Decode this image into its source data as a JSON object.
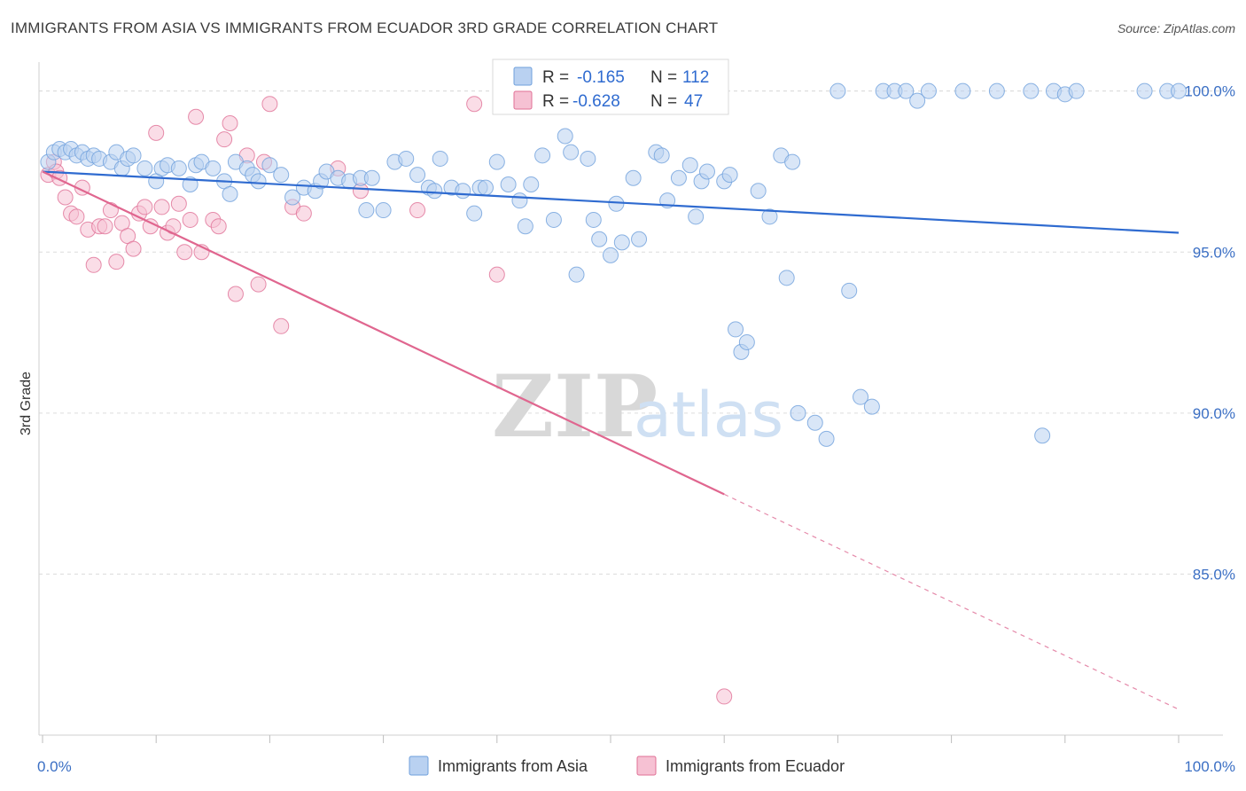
{
  "title": "IMMIGRANTS FROM ASIA VS IMMIGRANTS FROM ECUADOR 3RD GRADE CORRELATION CHART",
  "source": "Source: ZipAtlas.com",
  "watermark": {
    "zip": "ZIP",
    "atlas": "atlas"
  },
  "colors": {
    "asia": "#6fa0dc",
    "asia_fill": "#b9d1f1",
    "ecuador": "#e07096",
    "ecuador_fill": "#f6c1d3",
    "grid": "#dcdcdc"
  },
  "legend": {
    "r_label": "R =",
    "n_label": "N =",
    "asia": {
      "r": "-0.165",
      "n": "112"
    },
    "ecuador": {
      "r": "-0.628",
      "n": "47"
    }
  },
  "chart_data": {
    "type": "scatter",
    "title": "IMMIGRANTS FROM ASIA VS IMMIGRANTS FROM ECUADOR 3RD GRADE CORRELATION CHART",
    "xlabel": "",
    "ylabel": "3rd Grade",
    "xlim": [
      0,
      100
    ],
    "ylim": [
      80.0,
      100.9
    ],
    "x_tick_labels": [
      "0.0%",
      "100.0%"
    ],
    "y_ticks": [
      100.0,
      95.0,
      90.0,
      85.0
    ],
    "y_tick_labels": [
      "100.0%",
      "95.0%",
      "90.0%",
      "85.0%"
    ],
    "series": [
      {
        "name": "Immigrants from Asia",
        "trend": {
          "x0": 0,
          "y0": 97.5,
          "x1": 100,
          "y1": 95.6,
          "dashed_from": null
        },
        "points": [
          [
            0.5,
            97.8
          ],
          [
            1,
            98.1
          ],
          [
            1.5,
            98.2
          ],
          [
            2,
            98.1
          ],
          [
            2.5,
            98.2
          ],
          [
            3,
            98.0
          ],
          [
            3.5,
            98.1
          ],
          [
            4,
            97.9
          ],
          [
            4.5,
            98.0
          ],
          [
            5,
            97.9
          ],
          [
            6,
            97.8
          ],
          [
            6.5,
            98.1
          ],
          [
            7,
            97.6
          ],
          [
            7.5,
            97.9
          ],
          [
            8,
            98.0
          ],
          [
            9,
            97.6
          ],
          [
            10,
            97.2
          ],
          [
            10.5,
            97.6
          ],
          [
            11,
            97.7
          ],
          [
            12,
            97.6
          ],
          [
            13,
            97.1
          ],
          [
            13.5,
            97.7
          ],
          [
            14,
            97.8
          ],
          [
            15,
            97.6
          ],
          [
            16,
            97.2
          ],
          [
            16.5,
            96.8
          ],
          [
            17,
            97.8
          ],
          [
            18,
            97.6
          ],
          [
            18.5,
            97.4
          ],
          [
            19,
            97.2
          ],
          [
            20,
            97.7
          ],
          [
            21,
            97.4
          ],
          [
            22,
            96.7
          ],
          [
            23,
            97.0
          ],
          [
            24,
            96.9
          ],
          [
            24.5,
            97.2
          ],
          [
            25,
            97.5
          ],
          [
            26,
            97.3
          ],
          [
            27,
            97.2
          ],
          [
            28,
            97.3
          ],
          [
            28.5,
            96.3
          ],
          [
            29,
            97.3
          ],
          [
            30,
            96.3
          ],
          [
            31,
            97.8
          ],
          [
            32,
            97.9
          ],
          [
            33,
            97.4
          ],
          [
            34,
            97.0
          ],
          [
            34.5,
            96.9
          ],
          [
            35,
            97.9
          ],
          [
            36,
            97.0
          ],
          [
            37,
            96.9
          ],
          [
            38,
            96.2
          ],
          [
            38.5,
            97.0
          ],
          [
            39,
            97.0
          ],
          [
            40,
            97.8
          ],
          [
            41,
            97.1
          ],
          [
            42,
            96.6
          ],
          [
            42.5,
            95.8
          ],
          [
            43,
            97.1
          ],
          [
            44,
            98.0
          ],
          [
            45,
            96.0
          ],
          [
            46,
            98.6
          ],
          [
            46.5,
            98.1
          ],
          [
            47,
            94.3
          ],
          [
            48,
            97.9
          ],
          [
            48.5,
            96.0
          ],
          [
            49,
            95.4
          ],
          [
            50,
            94.9
          ],
          [
            50.5,
            96.5
          ],
          [
            51,
            95.3
          ],
          [
            52,
            97.3
          ],
          [
            52.5,
            95.4
          ],
          [
            54,
            98.1
          ],
          [
            54.5,
            98.0
          ],
          [
            55,
            96.6
          ],
          [
            56,
            97.3
          ],
          [
            57,
            97.7
          ],
          [
            57.5,
            96.1
          ],
          [
            58,
            97.2
          ],
          [
            58.5,
            97.5
          ],
          [
            60,
            97.2
          ],
          [
            60.5,
            97.4
          ],
          [
            61,
            92.6
          ],
          [
            61.5,
            91.9
          ],
          [
            62,
            92.2
          ],
          [
            63,
            96.9
          ],
          [
            64,
            96.1
          ],
          [
            65,
            98.0
          ],
          [
            65.5,
            94.2
          ],
          [
            66,
            97.8
          ],
          [
            66.5,
            90.0
          ],
          [
            68,
            89.7
          ],
          [
            69,
            89.2
          ],
          [
            70,
            100.0
          ],
          [
            71,
            93.8
          ],
          [
            72,
            90.5
          ],
          [
            73,
            90.2
          ],
          [
            74,
            100.0
          ],
          [
            75,
            100.0
          ],
          [
            76,
            100.0
          ],
          [
            77,
            99.7
          ],
          [
            78,
            100.0
          ],
          [
            81,
            100.0
          ],
          [
            84,
            100.0
          ],
          [
            87,
            100.0
          ],
          [
            88,
            89.3
          ],
          [
            89,
            100.0
          ],
          [
            90,
            99.9
          ],
          [
            91,
            100.0
          ],
          [
            97,
            100.0
          ],
          [
            99,
            100.0
          ],
          [
            100,
            100.0
          ]
        ]
      },
      {
        "name": "Immigrants from Ecuador",
        "trend": {
          "x0": 0,
          "y0": 97.5,
          "x1": 100,
          "y1": 80.8,
          "dashed_from": 60
        },
        "points": [
          [
            0.5,
            97.4
          ],
          [
            1,
            97.8
          ],
          [
            1.2,
            97.5
          ],
          [
            1.5,
            97.3
          ],
          [
            2,
            96.7
          ],
          [
            2.5,
            96.2
          ],
          [
            3,
            96.1
          ],
          [
            3.5,
            97.0
          ],
          [
            4,
            95.7
          ],
          [
            4.5,
            94.6
          ],
          [
            5,
            95.8
          ],
          [
            5.5,
            95.8
          ],
          [
            6,
            96.3
          ],
          [
            6.5,
            94.7
          ],
          [
            7,
            95.9
          ],
          [
            7.5,
            95.5
          ],
          [
            8,
            95.1
          ],
          [
            8.5,
            96.2
          ],
          [
            9,
            96.4
          ],
          [
            9.5,
            95.8
          ],
          [
            10,
            98.7
          ],
          [
            10.5,
            96.4
          ],
          [
            11,
            95.6
          ],
          [
            11.5,
            95.8
          ],
          [
            12,
            96.5
          ],
          [
            12.5,
            95.0
          ],
          [
            13,
            96.0
          ],
          [
            13.5,
            99.2
          ],
          [
            14,
            95.0
          ],
          [
            15,
            96.0
          ],
          [
            15.5,
            95.8
          ],
          [
            16,
            98.5
          ],
          [
            16.5,
            99.0
          ],
          [
            17,
            93.7
          ],
          [
            18,
            98.0
          ],
          [
            19,
            94.0
          ],
          [
            19.5,
            97.8
          ],
          [
            20,
            99.6
          ],
          [
            21,
            92.7
          ],
          [
            22,
            96.4
          ],
          [
            23,
            96.2
          ],
          [
            26,
            97.6
          ],
          [
            28,
            96.9
          ],
          [
            33,
            96.3
          ],
          [
            38,
            99.6
          ],
          [
            40,
            94.3
          ],
          [
            60,
            81.2
          ]
        ]
      }
    ]
  },
  "bottom_legend": {
    "asia": "Immigrants from Asia",
    "ecuador": "Immigrants from Ecuador"
  }
}
